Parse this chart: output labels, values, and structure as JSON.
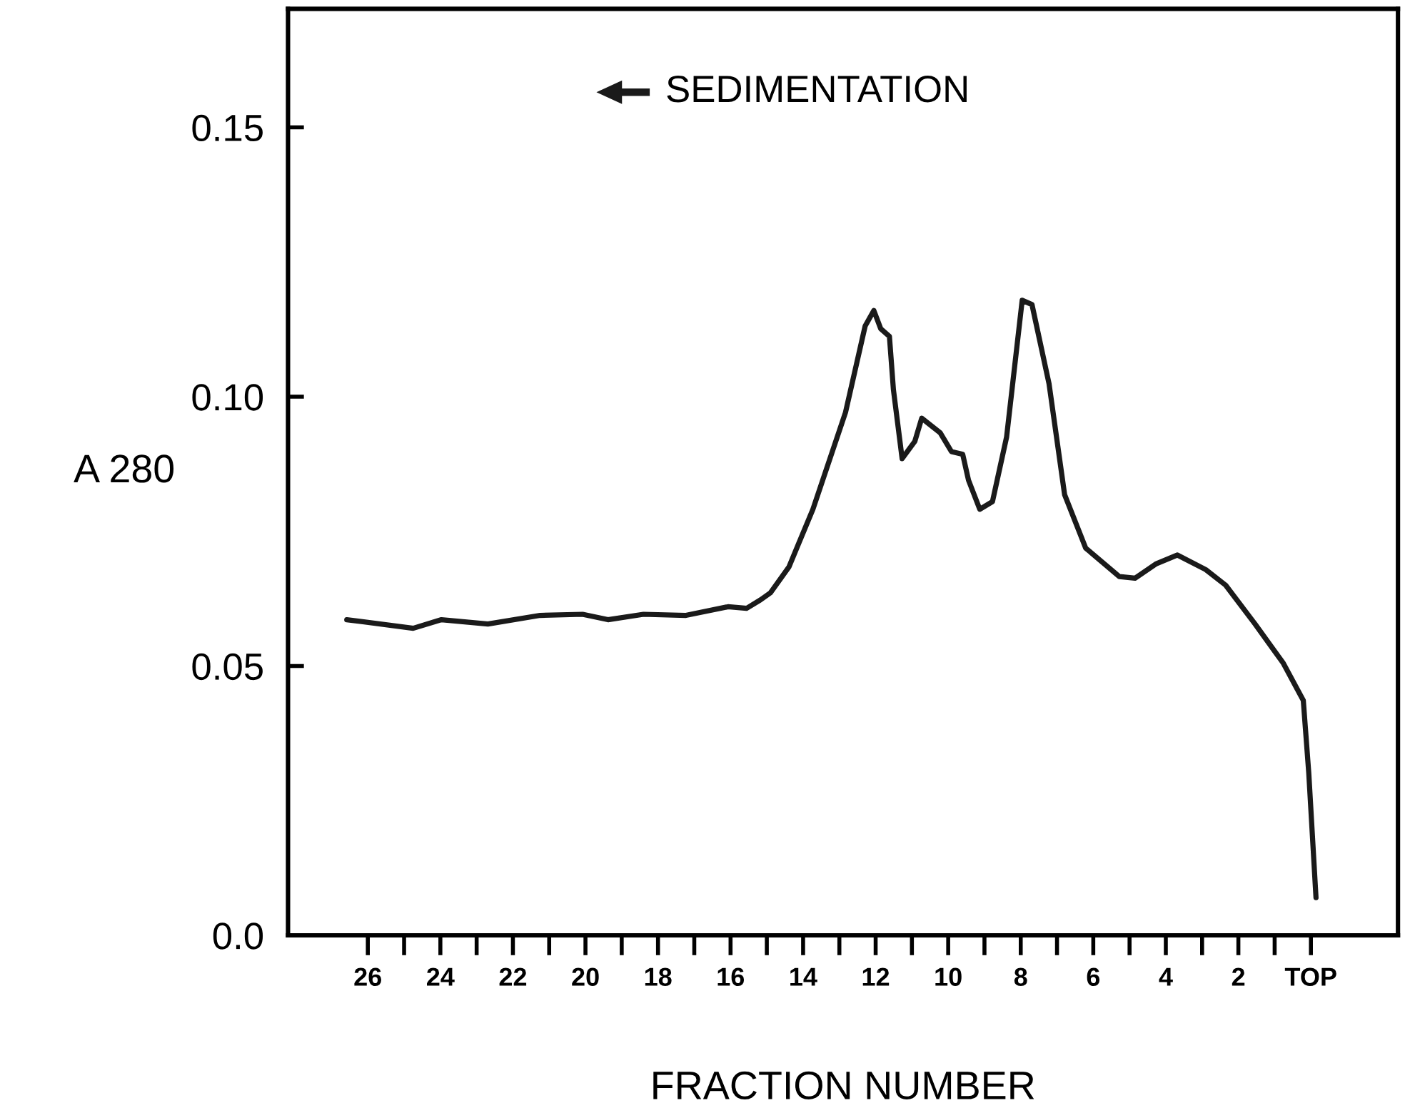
{
  "chart_data": {
    "type": "line",
    "xlabel": "FRACTION NUMBER",
    "ylabel": "A 280",
    "annotations": [
      "SEDIMENTATION"
    ],
    "series": [
      {
        "color": "#1a1a1a",
        "x": [
          26.58,
          24.75,
          23.97,
          22.69,
          21.25,
          20.08,
          19.38,
          18.4,
          17.23,
          16.07,
          15.56,
          15.17,
          14.9,
          14.39,
          13.73,
          12.83,
          12.29,
          12.05,
          11.86,
          11.62,
          11.51,
          11.27,
          10.92,
          10.73,
          10.22,
          9.91,
          9.6,
          9.44,
          9.13,
          8.78,
          8.39,
          7.96,
          7.69,
          7.22,
          6.79,
          6.21,
          5.28,
          4.85,
          4.26,
          3.68,
          2.9,
          2.35,
          1.54,
          0.76,
          0.21,
          0.06,
          -0.14
        ],
        "values": [
          0.0586,
          0.057,
          0.0586,
          0.0578,
          0.0594,
          0.0596,
          0.0586,
          0.0596,
          0.0594,
          0.061,
          0.0607,
          0.0623,
          0.0636,
          0.0684,
          0.0791,
          0.0971,
          0.1131,
          0.116,
          0.1126,
          0.1112,
          0.1013,
          0.0885,
          0.0917,
          0.096,
          0.0933,
          0.0898,
          0.0893,
          0.0845,
          0.0791,
          0.0805,
          0.0925,
          0.1179,
          0.1171,
          0.1024,
          0.0818,
          0.0719,
          0.0666,
          0.0663,
          0.069,
          0.0706,
          0.0679,
          0.065,
          0.0578,
          0.0505,
          0.0436,
          0.0302,
          0.007
        ]
      }
    ],
    "xlim": [
      28.2,
      -2.4
    ],
    "ylim": [
      0,
      0.172
    ],
    "xticks": [
      26,
      {
        "value": 25,
        "label": null
      },
      24,
      {
        "value": 23,
        "label": null
      },
      22,
      {
        "value": 21,
        "label": null
      },
      20,
      {
        "value": 19,
        "label": null
      },
      18,
      {
        "value": 17,
        "label": null
      },
      16,
      {
        "value": 15,
        "label": null
      },
      14,
      {
        "value": 13,
        "label": null
      },
      12,
      {
        "value": 11,
        "label": null
      },
      10,
      {
        "value": 9,
        "label": null
      },
      8,
      {
        "value": 7,
        "label": null
      },
      6,
      {
        "value": 5,
        "label": null
      },
      4,
      {
        "value": 3,
        "label": null
      },
      2,
      {
        "value": 1,
        "label": null
      },
      {
        "value": 0,
        "label": "TOP"
      }
    ],
    "yticks": [
      {
        "value": 0,
        "label": "0.0"
      },
      0.05,
      {
        "value": 0.1,
        "label": "0.10"
      },
      0.15
    ],
    "grid": false,
    "legend": false,
    "marker": "none",
    "line_style": "solid"
  }
}
